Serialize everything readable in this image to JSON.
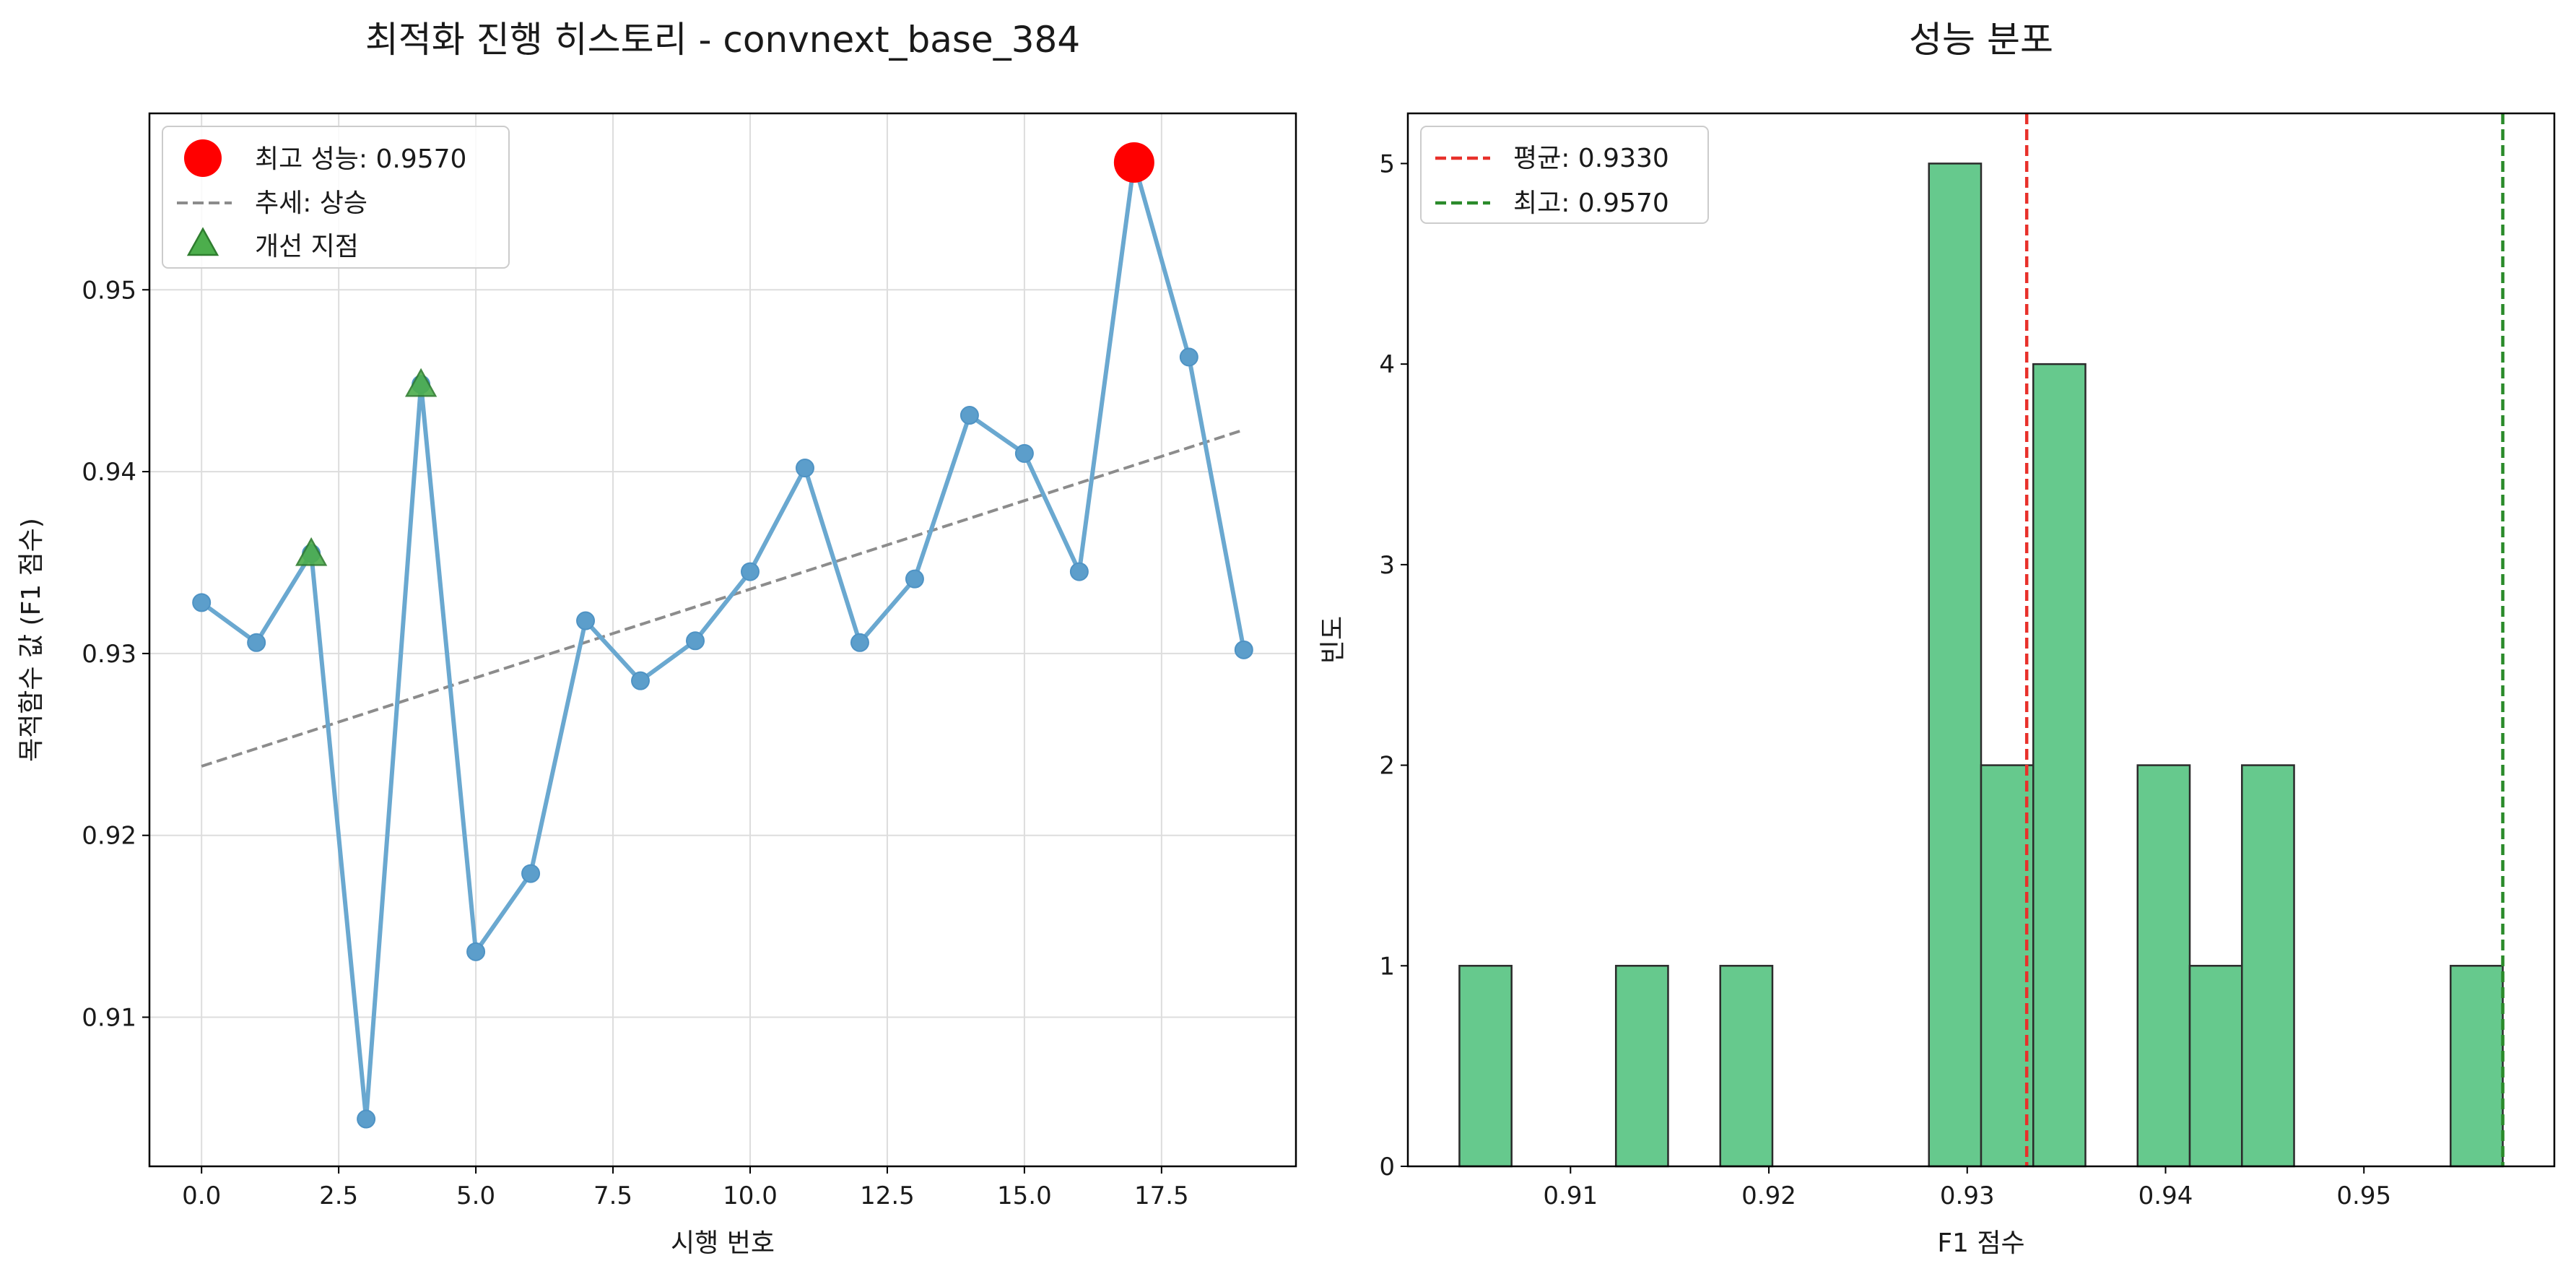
{
  "chart_data": [
    {
      "type": "line",
      "title": "최적화 진행 히스토리 - convnext_base_384",
      "xlabel": "시행 번호",
      "ylabel": "목적함수 값 (F1 점수)",
      "xlim": [
        -0.95,
        19.95
      ],
      "ylim": [
        0.9018,
        0.9597
      ],
      "xticks": [
        0.0,
        2.5,
        5.0,
        7.5,
        10.0,
        12.5,
        15.0,
        17.5
      ],
      "xtick_labels": [
        "0.0",
        "2.5",
        "5.0",
        "7.5",
        "10.0",
        "12.5",
        "15.0",
        "17.5"
      ],
      "yticks": [
        0.91,
        0.92,
        0.93,
        0.94,
        0.95
      ],
      "ytick_labels": [
        "0.91",
        "0.92",
        "0.93",
        "0.94",
        "0.95"
      ],
      "grid": true,
      "legend_position": "top-left",
      "series": [
        {
          "kind": "line-marker",
          "color": "#6aa8d0",
          "x": [
            0,
            1,
            2,
            3,
            4,
            5,
            6,
            7,
            8,
            9,
            10,
            11,
            12,
            13,
            14,
            15,
            16,
            17,
            18,
            19
          ],
          "values": [
            0.9328,
            0.9306,
            0.9355,
            0.9044,
            0.9448,
            0.9136,
            0.9179,
            0.9318,
            0.9285,
            0.9307,
            0.9345,
            0.9402,
            0.9306,
            0.9341,
            0.9431,
            0.941,
            0.9345,
            0.957,
            0.9463,
            0.9302
          ]
        },
        {
          "name": "최고 성능: 0.9570",
          "kind": "best-point",
          "color": "#ff0000",
          "x": [
            17
          ],
          "values": [
            0.957
          ]
        },
        {
          "name": "추세: 상승",
          "kind": "trend-line",
          "color": "#8c8c8c",
          "x": [
            0,
            19
          ],
          "values": [
            0.9238,
            0.9423
          ]
        },
        {
          "name": "개선 지점",
          "kind": "triangle-markers",
          "color": "#3f9c35",
          "x": [
            2,
            4
          ],
          "values": [
            0.9355,
            0.9448
          ]
        }
      ]
    },
    {
      "type": "bar",
      "title": "성능 분포",
      "xlabel": "F1 점수",
      "ylabel": "빈도",
      "xlim": [
        0.9018,
        0.9596
      ],
      "ylim": [
        0,
        5.25
      ],
      "xticks": [
        0.91,
        0.92,
        0.93,
        0.94,
        0.95
      ],
      "xtick_labels": [
        "0.91",
        "0.92",
        "0.93",
        "0.94",
        "0.95"
      ],
      "yticks": [
        0,
        1,
        2,
        3,
        4,
        5
      ],
      "ytick_labels": [
        "0",
        "1",
        "2",
        "3",
        "4",
        "5"
      ],
      "grid": false,
      "legend_position": "top-left",
      "bar_color": "#66c98d",
      "bin_edges": [
        0.9044,
        0.90966,
        0.91492,
        0.92018,
        0.92544,
        0.9307,
        0.93596,
        0.94122,
        0.94648,
        0.95174,
        0.957
      ],
      "histogram": {
        "bins_lo": [
          0.9044,
          0.90703,
          0.90966,
          0.91229,
          0.91492,
          0.91755,
          0.92018,
          0.92281,
          0.92544,
          0.92807,
          0.9307,
          0.93333,
          0.93596,
          0.93859,
          0.94122,
          0.94385,
          0.94648,
          0.94911,
          0.95174,
          0.95437
        ],
        "bins_hi": [
          0.90703,
          0.90966,
          0.91229,
          0.91492,
          0.91755,
          0.92018,
          0.92281,
          0.92544,
          0.92807,
          0.9307,
          0.93333,
          0.93596,
          0.93859,
          0.94122,
          0.94385,
          0.94648,
          0.94911,
          0.95174,
          0.95437,
          0.957
        ],
        "counts": [
          1,
          0,
          0,
          1,
          0,
          1,
          0,
          0,
          0,
          5,
          2,
          4,
          0,
          2,
          1,
          2,
          0,
          0,
          0,
          1
        ]
      },
      "vlines": [
        {
          "name": "평균: 0.9330",
          "x": 0.933,
          "color": "#e8302a"
        },
        {
          "name": "최고: 0.9570",
          "x": 0.957,
          "color": "#2a8a2a"
        }
      ]
    }
  ]
}
